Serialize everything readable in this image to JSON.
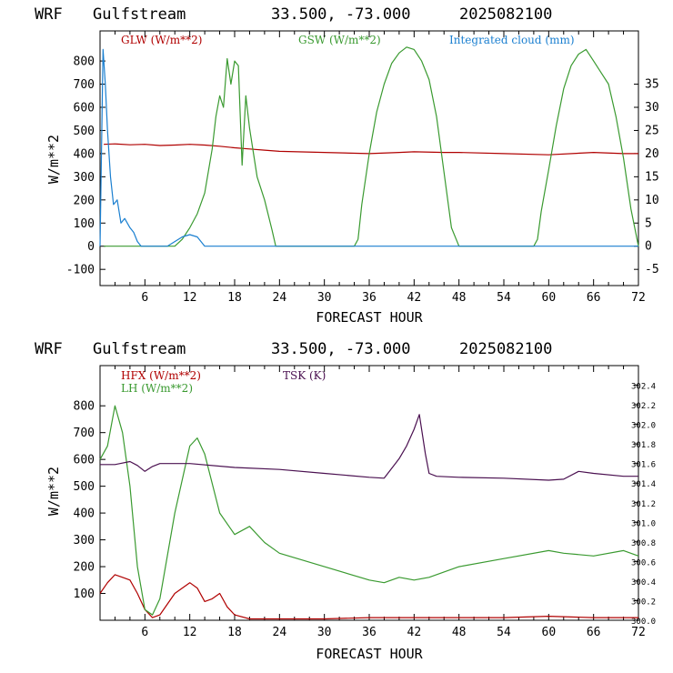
{
  "chart_data": [
    {
      "type": "line",
      "header": {
        "model": "WRF",
        "station": "Gulfstream",
        "coords": "33.500, -73.000",
        "date": "2025082100"
      },
      "xlabel": "FORECAST HOUR",
      "ylabel": "W/m**2",
      "xlim": [
        0,
        72
      ],
      "ylim": [
        -170,
        930
      ],
      "xticks": [
        6,
        12,
        18,
        24,
        30,
        36,
        42,
        48,
        54,
        60,
        66,
        72
      ],
      "yticks": [
        -100,
        0,
        100,
        200,
        300,
        400,
        500,
        600,
        700,
        800
      ],
      "y2lim": [
        -8.5,
        46.5
      ],
      "y2ticks": [
        -5,
        0,
        5,
        10,
        15,
        20,
        25,
        30,
        35
      ],
      "legend_placement": "top",
      "series": [
        {
          "name": "GLW (W/m**2)",
          "color": "#b00000",
          "axis": "left",
          "x": [
            0.5,
            2,
            4,
            6,
            8,
            10,
            12,
            14,
            16,
            18,
            20,
            22,
            24,
            30,
            36,
            40,
            42,
            46,
            48,
            54,
            60,
            66,
            70,
            72
          ],
          "values": [
            440,
            442,
            438,
            440,
            435,
            437,
            440,
            437,
            432,
            425,
            420,
            415,
            410,
            405,
            400,
            405,
            408,
            405,
            405,
            400,
            395,
            405,
            400,
            400
          ]
        },
        {
          "name": "GSW (W/m**2)",
          "color": "#3a9a30",
          "axis": "left",
          "x": [
            0.5,
            6,
            10,
            11,
            12,
            13,
            14,
            15,
            15.5,
            16,
            16.5,
            17,
            17.5,
            18,
            18.5,
            19,
            19.5,
            20,
            21,
            22,
            23,
            23.5,
            24,
            34,
            34.5,
            35,
            36,
            37,
            38,
            39,
            40,
            41,
            42,
            43,
            44,
            45,
            46,
            47,
            48,
            58,
            58.5,
            59,
            60,
            61,
            62,
            63,
            64,
            65,
            66,
            67,
            68,
            69,
            70,
            71,
            72
          ],
          "values": [
            0,
            0,
            0,
            30,
            80,
            140,
            230,
            420,
            560,
            650,
            600,
            810,
            700,
            800,
            780,
            350,
            650,
            510,
            300,
            200,
            70,
            0,
            0,
            0,
            30,
            180,
            400,
            580,
            700,
            790,
            835,
            860,
            850,
            800,
            720,
            560,
            320,
            80,
            0,
            0,
            30,
            150,
            330,
            520,
            680,
            780,
            830,
            850,
            800,
            750,
            700,
            560,
            380,
            160,
            0
          ]
        },
        {
          "name": "Integrated cloud (mm)",
          "color": "#1a7fd0",
          "axis": "right",
          "x": [
            0,
            0.4,
            0.7,
            1,
            1.4,
            1.8,
            2.3,
            2.8,
            3.3,
            4,
            4.5,
            5,
            5.5,
            6,
            9,
            10,
            11,
            12,
            13,
            13.5,
            14,
            72
          ],
          "values": [
            0,
            42.5,
            35,
            25,
            15,
            9,
            10,
            5,
            6,
            4,
            3,
            1,
            0,
            0,
            0,
            1,
            2,
            2.5,
            2,
            1,
            0,
            0
          ]
        }
      ]
    },
    {
      "type": "line",
      "header": {
        "model": "WRF",
        "station": "Gulfstream",
        "coords": "33.500, -73.000",
        "date": "2025082100"
      },
      "xlabel": "FORECAST HOUR",
      "ylabel": "W/m**2",
      "xlim": [
        0,
        72
      ],
      "ylim": [
        0,
        950
      ],
      "xticks": [
        6,
        12,
        18,
        24,
        30,
        36,
        42,
        48,
        54,
        60,
        66,
        72
      ],
      "yticks": [
        100,
        200,
        300,
        400,
        500,
        600,
        700,
        800
      ],
      "y2lim": [
        300.0,
        302.6
      ],
      "y2ticks": [
        300.0,
        300.2,
        300.4,
        300.6,
        300.8,
        301.0,
        301.2,
        301.4,
        301.6,
        301.8,
        302.0,
        302.2,
        302.4
      ],
      "legend_placement": "top-left",
      "series": [
        {
          "name": "HFX (W/m**2)",
          "color": "#b00000",
          "axis": "left",
          "x": [
            0,
            1,
            2,
            3,
            4,
            5,
            6,
            7,
            8,
            10,
            12,
            13,
            14,
            15,
            16,
            17,
            18,
            20,
            24,
            30,
            36,
            42,
            48,
            54,
            60,
            66,
            72
          ],
          "values": [
            100,
            140,
            170,
            160,
            150,
            100,
            40,
            10,
            20,
            100,
            140,
            120,
            70,
            80,
            100,
            50,
            20,
            5,
            5,
            5,
            10,
            10,
            10,
            10,
            15,
            10,
            10
          ]
        },
        {
          "name": "LH (W/m**2)",
          "color": "#3a9a30",
          "axis": "left",
          "x": [
            0,
            1,
            2,
            3,
            4,
            5,
            6,
            7,
            8,
            10,
            12,
            13,
            14,
            16,
            18,
            20,
            22,
            24,
            30,
            36,
            38,
            40,
            42,
            44,
            46,
            48,
            54,
            60,
            62,
            66,
            70,
            72
          ],
          "values": [
            600,
            650,
            800,
            700,
            500,
            200,
            40,
            20,
            80,
            400,
            650,
            680,
            620,
            400,
            320,
            350,
            290,
            250,
            200,
            150,
            140,
            160,
            150,
            160,
            180,
            200,
            230,
            260,
            250,
            240,
            260,
            240
          ]
        },
        {
          "name": "TSK (K)",
          "color": "#4a1050",
          "axis": "right",
          "x": [
            0,
            2,
            4,
            5,
            6,
            7,
            8,
            12,
            18,
            24,
            30,
            36,
            38,
            40,
            41,
            42,
            42.7,
            43.5,
            44,
            45,
            48,
            54,
            60,
            62,
            64,
            66,
            70,
            72
          ],
          "values": [
            301.59,
            301.59,
            301.62,
            301.58,
            301.52,
            301.57,
            301.6,
            301.6,
            301.56,
            301.54,
            301.5,
            301.46,
            301.45,
            301.65,
            301.78,
            301.95,
            302.1,
            301.7,
            301.5,
            301.47,
            301.46,
            301.45,
            301.43,
            301.44,
            301.52,
            301.5,
            301.47,
            301.47
          ]
        }
      ]
    }
  ]
}
